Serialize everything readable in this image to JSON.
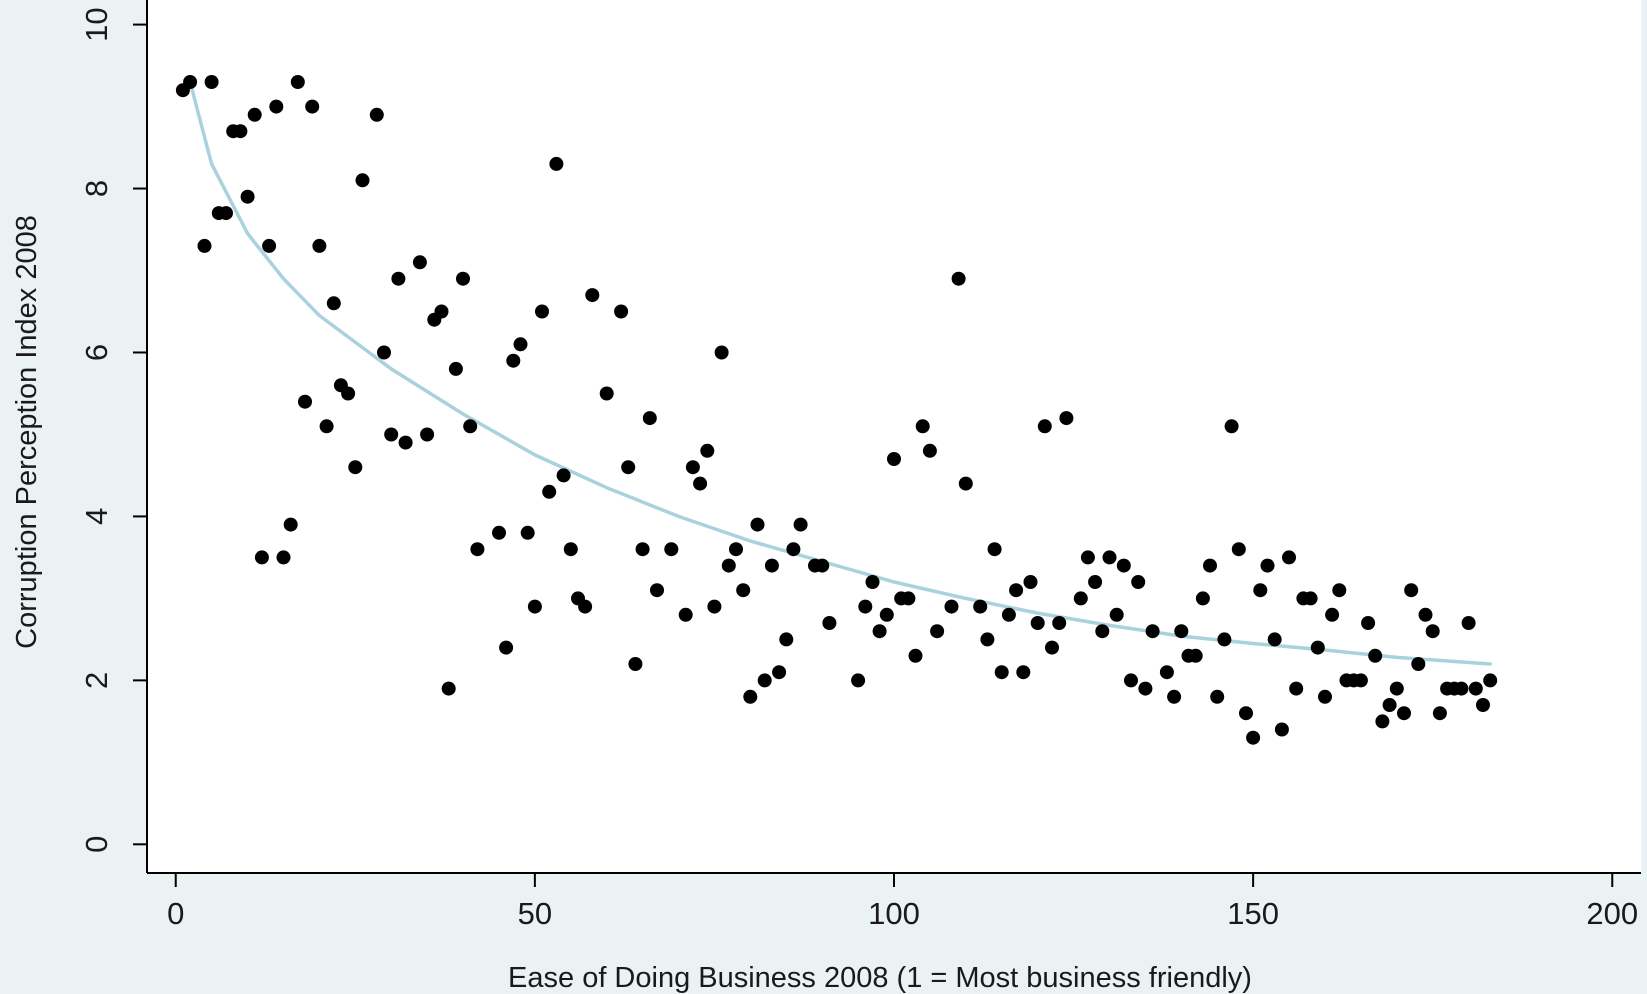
{
  "chart_data": {
    "type": "scatter",
    "xlabel": "Ease of Doing Business 2008 (1 = Most business friendly)",
    "ylabel": "Corruption Perception Index 2008",
    "xlim": [
      -4,
      204
    ],
    "ylim": [
      -0.35,
      10.3
    ],
    "x_ticks": [
      0,
      50,
      100,
      150,
      200
    ],
    "y_ticks": [
      0,
      2,
      4,
      6,
      8,
      10
    ],
    "grid": false,
    "legend": "none",
    "colors": {
      "background": "#eaf2f3",
      "plot_background": "#ffffff",
      "points": "#000000",
      "fit_line": "#a8d2dc",
      "axis": "#000000"
    },
    "series": [
      {
        "type": "scatter",
        "points": [
          [
            1,
            9.2
          ],
          [
            2,
            9.3
          ],
          [
            4,
            7.3
          ],
          [
            5,
            9.3
          ],
          [
            6,
            7.7
          ],
          [
            7,
            7.7
          ],
          [
            8,
            8.7
          ],
          [
            9,
            8.7
          ],
          [
            10,
            7.9
          ],
          [
            11,
            8.9
          ],
          [
            12,
            3.5
          ],
          [
            13,
            7.3
          ],
          [
            14,
            9.0
          ],
          [
            15,
            3.5
          ],
          [
            16,
            3.9
          ],
          [
            17,
            9.3
          ],
          [
            18,
            5.4
          ],
          [
            19,
            9.0
          ],
          [
            20,
            7.3
          ],
          [
            21,
            5.1
          ],
          [
            22,
            6.6
          ],
          [
            23,
            5.6
          ],
          [
            24,
            5.5
          ],
          [
            25,
            4.6
          ],
          [
            26,
            8.1
          ],
          [
            28,
            8.9
          ],
          [
            29,
            6.0
          ],
          [
            30,
            5.0
          ],
          [
            31,
            6.9
          ],
          [
            32,
            4.9
          ],
          [
            34,
            7.1
          ],
          [
            35,
            5.0
          ],
          [
            36,
            6.4
          ],
          [
            37,
            6.5
          ],
          [
            38,
            1.9
          ],
          [
            39,
            5.8
          ],
          [
            40,
            6.9
          ],
          [
            41,
            5.1
          ],
          [
            42,
            3.6
          ],
          [
            45,
            3.8
          ],
          [
            46,
            2.4
          ],
          [
            47,
            5.9
          ],
          [
            48,
            6.1
          ],
          [
            49,
            3.8
          ],
          [
            50,
            2.9
          ],
          [
            51,
            6.5
          ],
          [
            52,
            4.3
          ],
          [
            53,
            8.3
          ],
          [
            54,
            4.5
          ],
          [
            55,
            3.6
          ],
          [
            56,
            3.0
          ],
          [
            57,
            2.9
          ],
          [
            58,
            6.7
          ],
          [
            60,
            5.5
          ],
          [
            62,
            6.5
          ],
          [
            63,
            4.6
          ],
          [
            64,
            2.2
          ],
          [
            65,
            3.6
          ],
          [
            66,
            5.2
          ],
          [
            67,
            3.1
          ],
          [
            69,
            3.6
          ],
          [
            71,
            2.8
          ],
          [
            72,
            4.6
          ],
          [
            73,
            4.4
          ],
          [
            74,
            4.8
          ],
          [
            75,
            2.9
          ],
          [
            76,
            6.0
          ],
          [
            77,
            3.4
          ],
          [
            78,
            3.6
          ],
          [
            79,
            3.1
          ],
          [
            80,
            1.8
          ],
          [
            81,
            3.9
          ],
          [
            82,
            2.0
          ],
          [
            83,
            3.4
          ],
          [
            84,
            2.1
          ],
          [
            85,
            2.5
          ],
          [
            86,
            3.6
          ],
          [
            87,
            3.9
          ],
          [
            89,
            3.4
          ],
          [
            90,
            3.4
          ],
          [
            91,
            2.7
          ],
          [
            95,
            2.0
          ],
          [
            96,
            2.9
          ],
          [
            97,
            3.2
          ],
          [
            98,
            2.6
          ],
          [
            99,
            2.8
          ],
          [
            100,
            4.7
          ],
          [
            101,
            3.0
          ],
          [
            102,
            3.0
          ],
          [
            103,
            2.3
          ],
          [
            104,
            5.1
          ],
          [
            105,
            4.8
          ],
          [
            106,
            2.6
          ],
          [
            108,
            2.9
          ],
          [
            109,
            6.9
          ],
          [
            110,
            4.4
          ],
          [
            112,
            2.9
          ],
          [
            113,
            2.5
          ],
          [
            114,
            3.6
          ],
          [
            115,
            2.1
          ],
          [
            116,
            2.8
          ],
          [
            117,
            3.1
          ],
          [
            118,
            2.1
          ],
          [
            119,
            3.2
          ],
          [
            120,
            2.7
          ],
          [
            121,
            5.1
          ],
          [
            122,
            2.4
          ],
          [
            123,
            2.7
          ],
          [
            124,
            5.2
          ],
          [
            126,
            3.0
          ],
          [
            127,
            3.5
          ],
          [
            128,
            3.2
          ],
          [
            129,
            2.6
          ],
          [
            130,
            3.5
          ],
          [
            131,
            2.8
          ],
          [
            132,
            3.4
          ],
          [
            133,
            2.0
          ],
          [
            134,
            3.2
          ],
          [
            135,
            1.9
          ],
          [
            136,
            2.6
          ],
          [
            138,
            2.1
          ],
          [
            139,
            1.8
          ],
          [
            140,
            2.6
          ],
          [
            141,
            2.3
          ],
          [
            142,
            2.3
          ],
          [
            143,
            3.0
          ],
          [
            144,
            3.4
          ],
          [
            145,
            1.8
          ],
          [
            146,
            2.5
          ],
          [
            147,
            5.1
          ],
          [
            148,
            3.6
          ],
          [
            149,
            1.6
          ],
          [
            150,
            1.3
          ],
          [
            151,
            3.1
          ],
          [
            152,
            3.4
          ],
          [
            153,
            2.5
          ],
          [
            154,
            1.4
          ],
          [
            155,
            3.5
          ],
          [
            156,
            1.9
          ],
          [
            157,
            3.0
          ],
          [
            158,
            3.0
          ],
          [
            159,
            2.4
          ],
          [
            160,
            1.8
          ],
          [
            161,
            2.8
          ],
          [
            162,
            3.1
          ],
          [
            163,
            2.0
          ],
          [
            164,
            2.0
          ],
          [
            165,
            2.0
          ],
          [
            166,
            2.7
          ],
          [
            167,
            2.3
          ],
          [
            168,
            1.5
          ],
          [
            169,
            1.7
          ],
          [
            170,
            1.9
          ],
          [
            171,
            1.6
          ],
          [
            172,
            3.1
          ],
          [
            173,
            2.2
          ],
          [
            174,
            2.8
          ],
          [
            175,
            2.6
          ],
          [
            176,
            1.6
          ],
          [
            177,
            1.9
          ],
          [
            178,
            1.9
          ],
          [
            179,
            1.9
          ],
          [
            180,
            2.7
          ],
          [
            181,
            1.9
          ],
          [
            182,
            1.7
          ],
          [
            183,
            2.0
          ]
        ]
      },
      {
        "type": "line",
        "points": [
          [
            2,
            9.3
          ],
          [
            5,
            8.3
          ],
          [
            10,
            7.45
          ],
          [
            15,
            6.9
          ],
          [
            20,
            6.45
          ],
          [
            30,
            5.8
          ],
          [
            40,
            5.25
          ],
          [
            50,
            4.75
          ],
          [
            60,
            4.35
          ],
          [
            70,
            4.0
          ],
          [
            80,
            3.7
          ],
          [
            90,
            3.45
          ],
          [
            100,
            3.2
          ],
          [
            110,
            3.0
          ],
          [
            120,
            2.82
          ],
          [
            130,
            2.67
          ],
          [
            140,
            2.54
          ],
          [
            150,
            2.45
          ],
          [
            160,
            2.37
          ],
          [
            170,
            2.28
          ],
          [
            183,
            2.2
          ]
        ]
      }
    ]
  }
}
